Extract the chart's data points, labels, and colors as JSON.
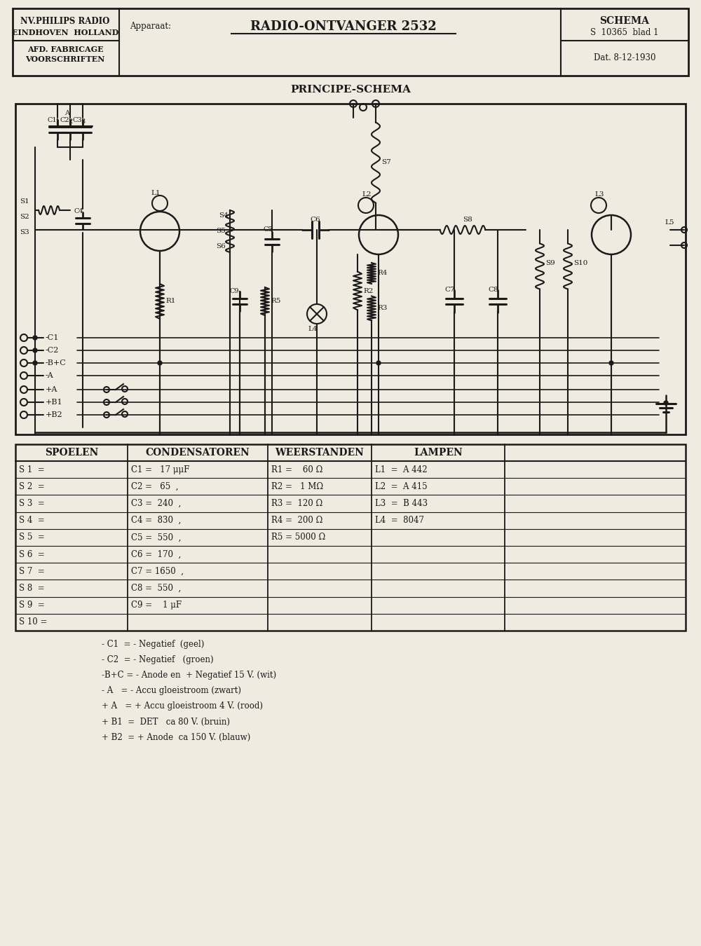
{
  "bg_color": "#f0ebe0",
  "line_color": "#1a1a1a",
  "title_main": "RADIO-ONTVANGER 2532",
  "schema_title": "PRINCIPE-SCHEMA",
  "header": {
    "company1": "NV.PHILIPS RADIO",
    "company2": "EINDHOVEN  HOLLAND",
    "dept1": "AFD. FABRICAGE",
    "dept2": "VOORSCHRIFTEN",
    "apparaat": "Apparaat:",
    "schema_label": "SCHEMA",
    "schema_num": "S  10365  blad 1",
    "date_label": "Dat. 8-12-1930"
  },
  "table_headers": [
    "SPOELEN",
    "CONDENSATOREN",
    "WEERSTANDEN",
    "LAMPEN"
  ],
  "spoelen": [
    "S 1  =",
    "S 2  =",
    "S 3  =",
    "S 4  =",
    "S 5  =",
    "S 6  =",
    "S 7  =",
    "S 8  =",
    "S 9  =",
    "S 10 ="
  ],
  "condensatoren": [
    "C1 =   17 μμF",
    "C2 =   65  ,",
    "C3 =  240  ,",
    "C4 =  830  ,",
    "C5 =  550  ,",
    "C6 =  170  ,",
    "C7 = 1650  ,",
    "C8 =  550  ,",
    "C9 =    1 μF"
  ],
  "weerstanden": [
    "R1 =    60 Ω",
    "R2 =   1 MΩ",
    "R3 =  120 Ω",
    "R4 =  200 Ω",
    "R5 = 5000 Ω"
  ],
  "lampen": [
    "L1  =  A 442",
    "L2  =  A 415",
    "L3  =  B 443",
    "L4  =  8047"
  ],
  "footnotes": [
    "- C1  = - Negatief  (geel)",
    "- C2  = - Negatief   (groen)",
    "-B+C = - Anode en  + Negatief 15 V. (wit)",
    "- A   = - Accu gloeistroom (zwart)",
    "+ A   = + Accu gloeistroom 4 V. (rood)",
    "+ B1  =  DET   ca 80 V. (bruin)",
    "+ B2  = + Anode  ca 150 V. (blauw)"
  ]
}
